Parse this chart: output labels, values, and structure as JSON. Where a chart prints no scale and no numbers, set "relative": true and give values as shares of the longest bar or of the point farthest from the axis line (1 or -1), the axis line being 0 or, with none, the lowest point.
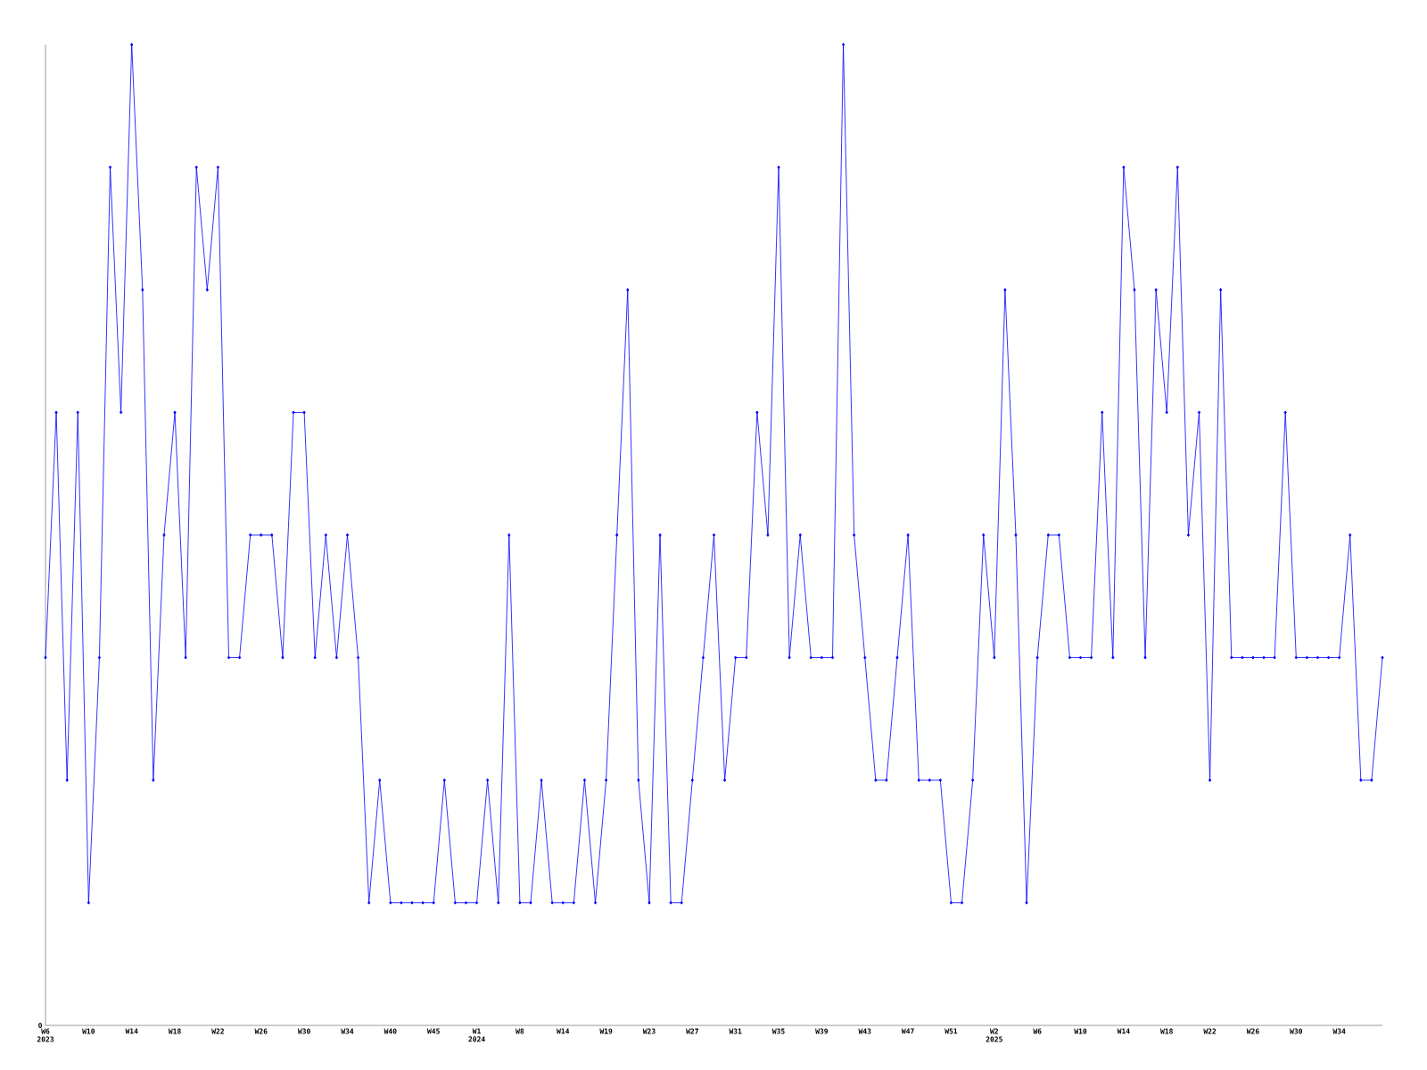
{
  "chart_data": {
    "type": "line",
    "relative": true,
    "annotations": [
      "0"
    ],
    "color": "#0000ff",
    "marker": "diamond",
    "line_style": "solid",
    "categories": [
      "W6 2023",
      null,
      null,
      null,
      "W10",
      null,
      null,
      null,
      "W14",
      null,
      null,
      null,
      "W18",
      null,
      null,
      null,
      "W22",
      null,
      null,
      null,
      "W26",
      null,
      null,
      null,
      "W30",
      null,
      null,
      null,
      "W34",
      null,
      null,
      null,
      "W40",
      null,
      null,
      null,
      "W45",
      null,
      null,
      null,
      "W1 2024",
      null,
      null,
      null,
      "W8",
      null,
      null,
      null,
      "W14",
      null,
      null,
      null,
      "W19",
      null,
      null,
      null,
      "W23",
      null,
      null,
      null,
      "W27",
      null,
      null,
      null,
      "W31",
      null,
      null,
      null,
      "W35",
      null,
      null,
      null,
      "W39",
      null,
      null,
      null,
      "W43",
      null,
      null,
      null,
      "W47",
      null,
      null,
      null,
      "W51",
      null,
      null,
      null,
      "W2 2025",
      null,
      null,
      null,
      "W6",
      null,
      null,
      null,
      "W10",
      null,
      null,
      null,
      "W14",
      null,
      null,
      null,
      "W18",
      null,
      null,
      null,
      "W22",
      null,
      null,
      null,
      "W26",
      null,
      null,
      null,
      "W30",
      null,
      null,
      null,
      "W34",
      null,
      null,
      null,
      null
    ],
    "values": [
      0.375,
      0.625,
      0.25,
      0.625,
      0.125,
      0.375,
      0.875,
      0.625,
      1,
      0.75,
      0.25,
      0.5,
      0.625,
      0.375,
      0.875,
      0.75,
      0.875,
      0.375,
      0.375,
      0.5,
      0.5,
      0.5,
      0.375,
      0.625,
      0.625,
      0.375,
      0.5,
      0.375,
      0.5,
      0.375,
      0.125,
      0.25,
      0.125,
      0.125,
      0.125,
      0.125,
      0.125,
      0.25,
      0.125,
      0.125,
      0.125,
      0.25,
      0.125,
      0.5,
      0.125,
      0.125,
      0.25,
      0.125,
      0.125,
      0.125,
      0.25,
      0.125,
      0.25,
      0.5,
      0.75,
      0.25,
      0.125,
      0.5,
      0.125,
      0.125,
      0.25,
      0.375,
      0.5,
      0.25,
      0.375,
      0.375,
      0.625,
      0.5,
      0.875,
      0.375,
      0.5,
      0.375,
      0.375,
      0.375,
      1,
      0.5,
      0.375,
      0.25,
      0.25,
      0.375,
      0.5,
      0.25,
      0.25,
      0.25,
      0.125,
      0.125,
      0.25,
      0.5,
      0.375,
      0.75,
      0.5,
      0.125,
      0.375,
      0.5,
      0.5,
      0.375,
      0.375,
      0.375,
      0.625,
      0.375,
      0.875,
      0.75,
      0.375,
      0.75,
      0.625,
      0.875,
      0.5,
      0.625,
      0.25,
      0.75,
      0.375,
      0.375,
      0.375,
      0.375,
      0.375,
      0.625,
      0.375,
      0.375,
      0.375,
      0.375,
      0.375,
      0.5,
      0.25,
      0.25,
      0.375
    ]
  }
}
